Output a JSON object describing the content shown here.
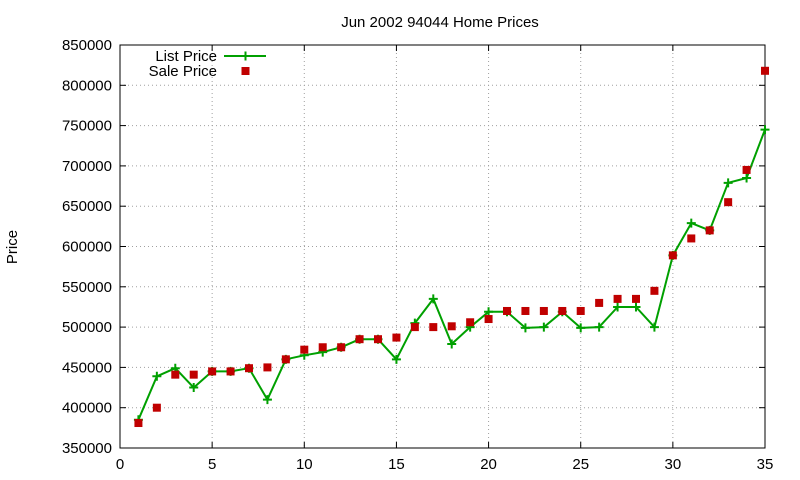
{
  "chart_data": {
    "type": "line",
    "title": "Jun 2002 94044 Home Prices",
    "xlabel": "",
    "ylabel": "Price",
    "xlim": [
      0,
      35
    ],
    "ylim": [
      350000,
      850000
    ],
    "xticks": [
      0,
      5,
      10,
      15,
      20,
      25,
      30,
      35
    ],
    "yticks": [
      350000,
      400000,
      450000,
      500000,
      550000,
      600000,
      650000,
      700000,
      750000,
      800000,
      850000
    ],
    "grid": true,
    "legend_position": "top-left",
    "series": [
      {
        "name": "List Price",
        "style": "line+cross",
        "color": "#00a000",
        "x": [
          1,
          2,
          3,
          4,
          5,
          6,
          7,
          8,
          9,
          10,
          11,
          12,
          13,
          14,
          15,
          16,
          17,
          18,
          19,
          20,
          21,
          22,
          23,
          24,
          25,
          26,
          27,
          28,
          29,
          30,
          31,
          32,
          33,
          34,
          35
        ],
        "y": [
          385000,
          439000,
          449000,
          425000,
          445000,
          445000,
          449000,
          410000,
          460000,
          465000,
          469000,
          475000,
          485000,
          485000,
          460000,
          505000,
          535000,
          479000,
          500000,
          519000,
          519000,
          499000,
          500000,
          519000,
          499000,
          500000,
          525000,
          525000,
          500000,
          589000,
          629000,
          620000,
          679000,
          685000,
          745000
        ]
      },
      {
        "name": "Sale Price",
        "style": "square",
        "color": "#c00000",
        "x": [
          1,
          2,
          3,
          4,
          5,
          6,
          7,
          8,
          9,
          10,
          11,
          12,
          13,
          14,
          15,
          16,
          17,
          18,
          19,
          20,
          21,
          22,
          23,
          24,
          25,
          26,
          27,
          28,
          29,
          30,
          31,
          32,
          33,
          34,
          35
        ],
        "y": [
          381000,
          400000,
          441000,
          441000,
          445000,
          445000,
          449000,
          450000,
          460000,
          472000,
          475000,
          475000,
          485000,
          485000,
          487000,
          500000,
          500000,
          501000,
          506000,
          510000,
          520000,
          520000,
          520000,
          520000,
          520000,
          530000,
          535000,
          535000,
          545000,
          589000,
          610000,
          620000,
          655000,
          695000,
          818000
        ]
      }
    ]
  }
}
